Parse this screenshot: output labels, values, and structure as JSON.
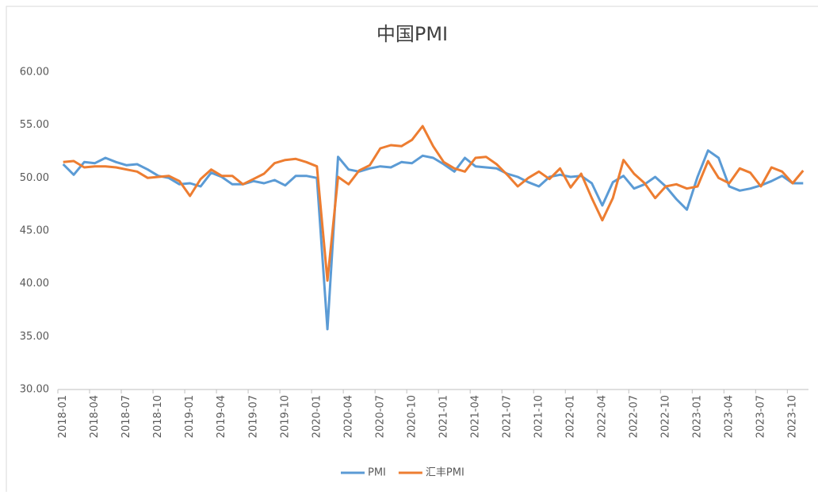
{
  "chart_data": {
    "type": "line",
    "title": "中国PMI",
    "categories": [
      "2018-01",
      null,
      null,
      "2018-04",
      null,
      null,
      "2018-07",
      null,
      null,
      "2018-10",
      null,
      null,
      "2019-01",
      null,
      null,
      "2019-04",
      null,
      null,
      "2019-07",
      null,
      null,
      "2019-10",
      null,
      null,
      "2020-01",
      null,
      null,
      "2020-04",
      null,
      null,
      "2020-07",
      null,
      null,
      "2020-10",
      null,
      null,
      "2021-01",
      null,
      null,
      "2021-04",
      null,
      null,
      "2021-07",
      null,
      null,
      "2021-10",
      null,
      null,
      "2022-01",
      null,
      null,
      "2022-04",
      null,
      null,
      "2022-07",
      null,
      null,
      "2022-10",
      null,
      null,
      "2023-01",
      null,
      null,
      "2023-04",
      null,
      null,
      "2023-07",
      null,
      null,
      "2023-10",
      null
    ],
    "series": [
      {
        "name": "PMI",
        "color": "#5b9bd5",
        "values": [
          51.3,
          50.3,
          51.5,
          51.4,
          51.9,
          51.5,
          51.2,
          51.3,
          50.8,
          50.2,
          50.0,
          49.4,
          49.5,
          49.2,
          50.5,
          50.1,
          49.4,
          49.4,
          49.7,
          49.5,
          49.8,
          49.3,
          50.2,
          50.2,
          50.0,
          35.7,
          52.0,
          50.8,
          50.6,
          50.9,
          51.1,
          51.0,
          51.5,
          51.4,
          52.1,
          51.9,
          51.3,
          50.6,
          51.9,
          51.1,
          51.0,
          50.9,
          50.4,
          50.1,
          49.6,
          49.2,
          50.1,
          50.3,
          50.1,
          50.2,
          49.5,
          47.4,
          49.6,
          50.2,
          49.0,
          49.4,
          50.1,
          49.2,
          48.0,
          47.0,
          50.1,
          52.6,
          51.9,
          49.2,
          48.8,
          49.0,
          49.3,
          49.7,
          50.2,
          49.5,
          49.5
        ]
      },
      {
        "name": "汇丰PMI",
        "color": "#ed7d31",
        "values": [
          51.5,
          51.6,
          51.0,
          51.1,
          51.1,
          51.0,
          50.8,
          50.6,
          50.0,
          50.1,
          50.2,
          49.7,
          48.3,
          49.9,
          50.8,
          50.2,
          50.2,
          49.4,
          49.9,
          50.4,
          51.4,
          51.7,
          51.8,
          51.5,
          51.1,
          40.3,
          50.1,
          49.4,
          50.7,
          51.2,
          52.8,
          53.1,
          53.0,
          53.6,
          54.9,
          53.0,
          51.5,
          50.9,
          50.6,
          51.9,
          52.0,
          51.3,
          50.3,
          49.2,
          50.0,
          50.6,
          49.9,
          50.9,
          49.1,
          50.4,
          48.1,
          46.0,
          48.1,
          51.7,
          50.4,
          49.5,
          48.1,
          49.2,
          49.4,
          49.0,
          49.2,
          51.6,
          50.0,
          49.5,
          50.9,
          50.5,
          49.2,
          51.0,
          50.6,
          49.5,
          50.7
        ]
      }
    ],
    "ylim": [
      30,
      60
    ],
    "yticks": [
      {
        "value": 30,
        "label": "30.00"
      },
      {
        "value": 35,
        "label": "35.00"
      },
      {
        "value": 40,
        "label": "40.00"
      },
      {
        "value": 45,
        "label": "45.00"
      },
      {
        "value": 50,
        "label": "50.00"
      },
      {
        "value": 55,
        "label": "55.00"
      },
      {
        "value": 60,
        "label": "60.00"
      }
    ],
    "grid": false,
    "legend": "bottom"
  }
}
